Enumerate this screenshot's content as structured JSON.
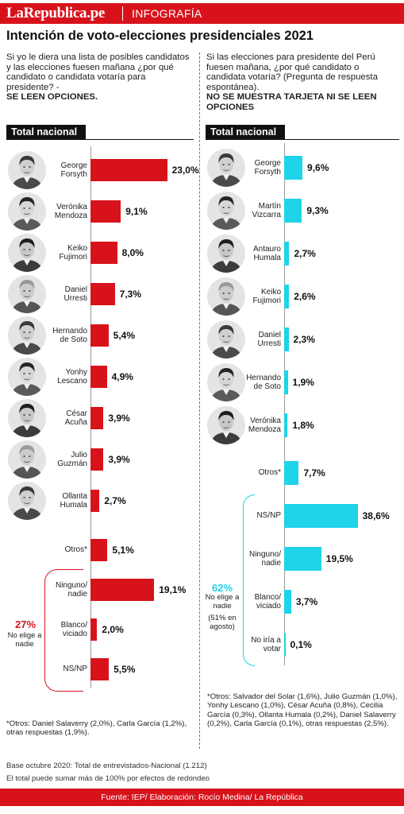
{
  "header": {
    "brand": "LaRepublica.pe",
    "section": "INFOGRAFÍA"
  },
  "title": "Intención de voto-elecciones presidenciales 2021",
  "left_question": {
    "text": "Si yo le diera una lista de posibles candidatos y las elecciones fuesen mañana ¿por qué candidato o candidata votaría para presidente? -",
    "bold": "SE LEEN OPCIONES."
  },
  "right_question": {
    "text": "Si las elecciones para presidente del Perú fuesen mañana, ¿por qué candidato o candidata votaría? (Pregunta de respuesta espontánea).",
    "bold": "NO SE MUESTRA TARJETA NI SE LEEN OPCIONES"
  },
  "left_group": {
    "pct": "27%",
    "label": "No elige a nadie",
    "color": "#d8121b"
  },
  "right_group": {
    "pct": "62%",
    "label": "No elige a nadie",
    "sub": "(51% en agosto)",
    "color": "#1fd3e8"
  },
  "left_note": "*Otros: Daniel Salaverry (2,0%), Carla García (1,2%), otras respuestas (1,9%).",
  "right_note": "*Otros: Salvador del Solar (1,6%), Julio Guzmán (1,0%), Yonhy Lescano (1,0%), César Acuña (0,8%), Cecilia García (0,3%), Ollanta Humala (0,2%), Daniel Salaverry (0,2%), Carla García (0,1%), otras respuestas (2,5%).",
  "base_line1": "Base octubre 2020: Total de entrevistados-Nacional (1.212)",
  "base_line2": "El total puede sumar más de 100% por efectos de redondeo",
  "footer": "Fuente: IEP/ Elaboración: Rocío Medina/ La República",
  "chart_data": [
    {
      "type": "bar",
      "orientation": "horizontal",
      "subtitle": "Total nacional",
      "color": "#d8121b",
      "categories": [
        "George Forsyth",
        "Verónika Mendoza",
        "Keiko Fujimori",
        "Daniel Urresti",
        "Hernando de Soto",
        "Yonhy Lescano",
        "César Acuña",
        "Julio Guzmán",
        "Ollanta Humala",
        "Otros*",
        "Ninguno/ nadie",
        "Blanco/ viciado",
        "NS/NP"
      ],
      "values": [
        23.0,
        9.1,
        8.0,
        7.3,
        5.4,
        4.9,
        3.9,
        3.9,
        2.7,
        5.1,
        19.1,
        2.0,
        5.5
      ],
      "labels": [
        "23,0%",
        "9,1%",
        "8,0%",
        "7,3%",
        "5,4%",
        "4,9%",
        "3,9%",
        "3,9%",
        "2,7%",
        "5,1%",
        "19,1%",
        "2,0%",
        "5,5%"
      ]
    },
    {
      "type": "bar",
      "orientation": "horizontal",
      "subtitle": "Total nacional",
      "color": "#1fd3e8",
      "categories": [
        "George Forsyth",
        "Martín Vizcarra",
        "Antauro Humala",
        "Keiko Fujimori",
        "Daniel Urresti",
        "Hernando de Soto",
        "Verónika Mendoza",
        "Otros*",
        "NS/NP",
        "Ninguno/ nadie",
        "Blanco/ viciado",
        "No iría a votar"
      ],
      "values": [
        9.6,
        9.3,
        2.7,
        2.6,
        2.3,
        1.9,
        1.8,
        7.7,
        38.6,
        19.5,
        3.7,
        0.1
      ],
      "labels": [
        "9,6%",
        "9,3%",
        "2,7%",
        "2,6%",
        "2,3%",
        "1,9%",
        "1,8%",
        "7,7%",
        "38,6%",
        "19,5%",
        "3,7%",
        "0,1%"
      ]
    }
  ]
}
